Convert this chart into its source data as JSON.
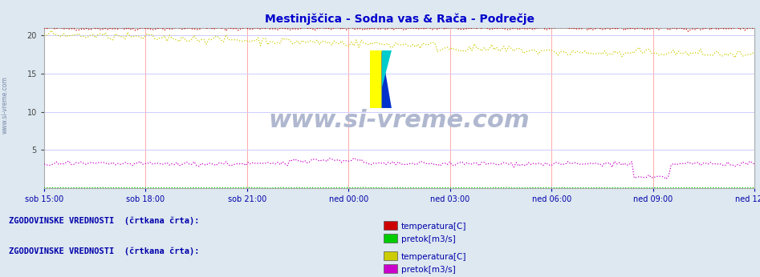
{
  "title": "Mestinjščica - Sodna vas & Rača - Podrečje",
  "title_color": "#0000cc",
  "bg_color": "#dde8f0",
  "plot_bg_color": "#ffffff",
  "grid_color_v": "#ffaaaa",
  "grid_color_h": "#ccccff",
  "xlabel_color": "#0000aa",
  "watermark": "www.si-vreme.com",
  "watermark_color": "#b0b8d0",
  "ylim": [
    0,
    21
  ],
  "yticks": [
    5,
    10,
    15,
    20
  ],
  "xtick_labels": [
    "sob 15:00",
    "sob 18:00",
    "sob 21:00",
    "ned 00:00",
    "ned 03:00",
    "ned 06:00",
    "ned 09:00",
    "ned 12:00"
  ],
  "n_points": 290,
  "legend1_label": "ZGODOVINSKE VREDNOSTI  (črtkana črta):",
  "legend1_items": [
    {
      "label": "temperatura[C]",
      "color": "#cc0000"
    },
    {
      "label": "pretok[m3/s]",
      "color": "#00cc00"
    }
  ],
  "legend2_label": "ZGODOVINSKE VREDNOSTI  (črtkana črta):",
  "legend2_items": [
    {
      "label": "temperatura[C]",
      "color": "#cccc00"
    },
    {
      "label": "pretok[m3/s]",
      "color": "#cc00cc"
    }
  ]
}
